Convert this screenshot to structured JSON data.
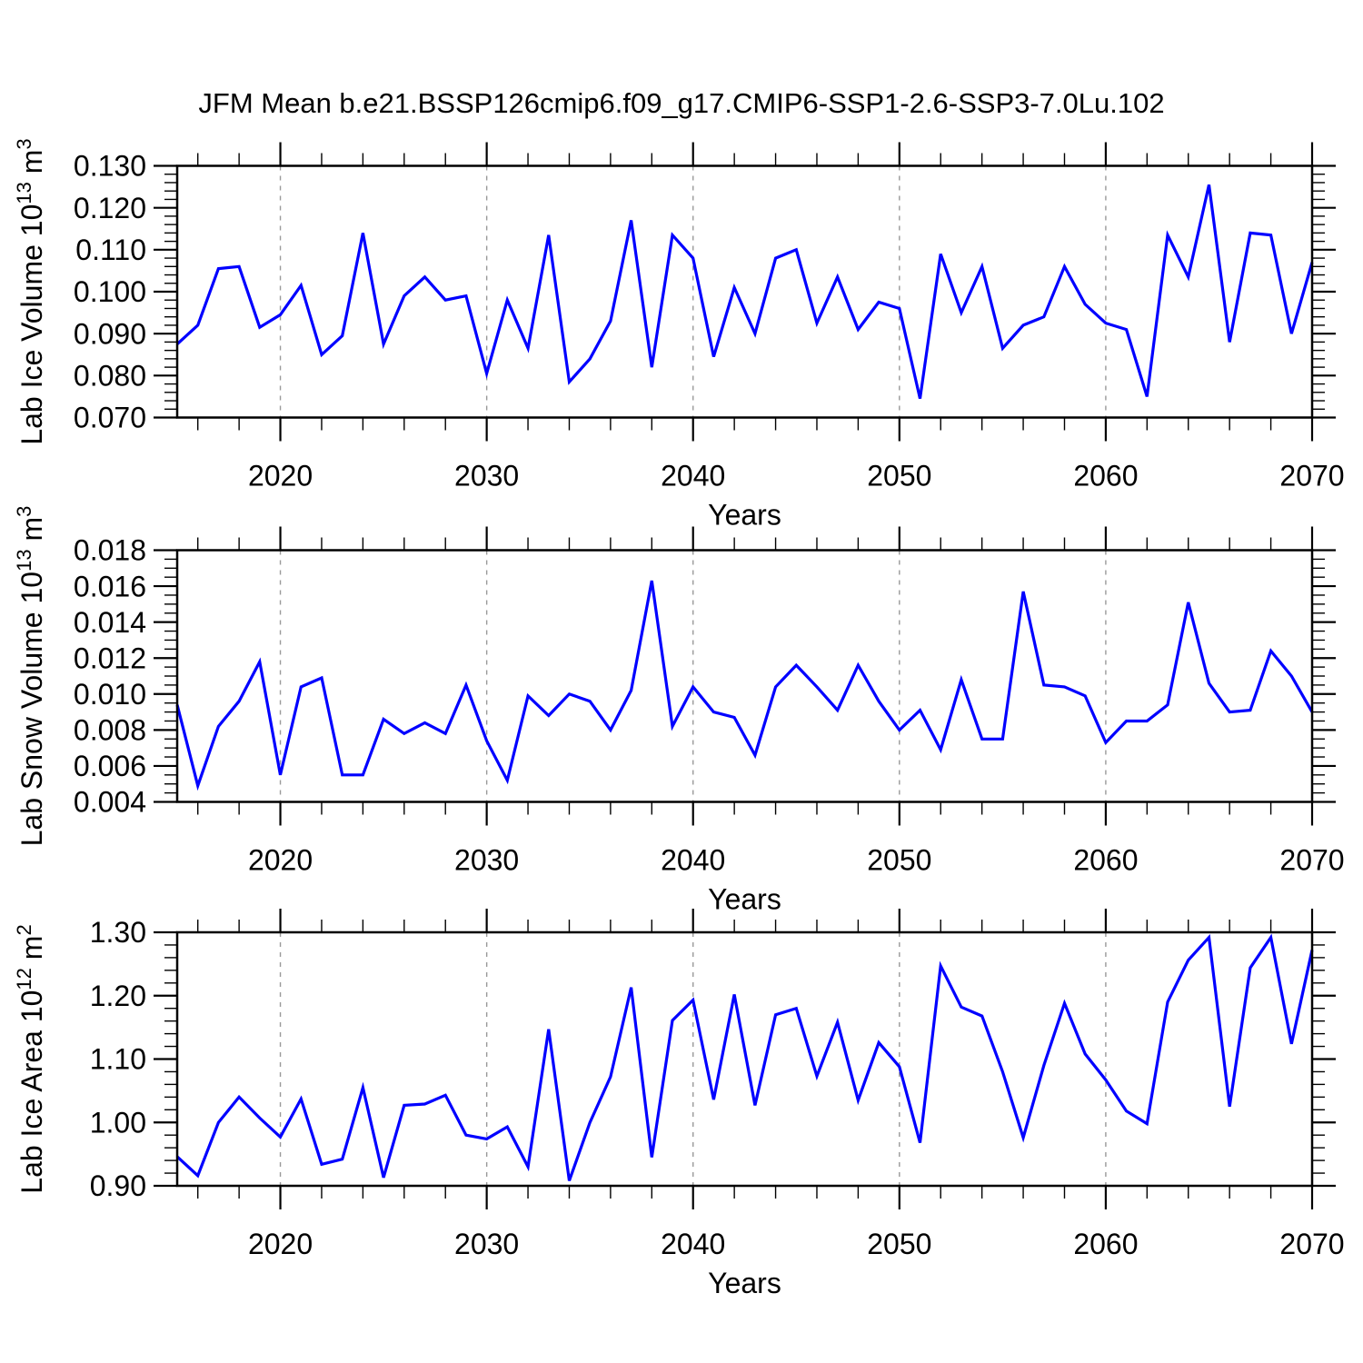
{
  "chart_data": {
    "type": "line",
    "title": "JFM Mean b.e21.BSSP126cmip6.f09_g17.CMIP6-SSP1-2.6-SSP3-7.0Lu.102",
    "xlabel": "Years",
    "legend": "none",
    "grid": "vertical-dashed",
    "line_color": "#0000ff",
    "grid_color": "#999999",
    "axis_color": "#000000",
    "x": [
      2015,
      2016,
      2017,
      2018,
      2019,
      2020,
      2021,
      2022,
      2023,
      2024,
      2025,
      2026,
      2027,
      2028,
      2029,
      2030,
      2031,
      2032,
      2033,
      2034,
      2035,
      2036,
      2037,
      2038,
      2039,
      2040,
      2041,
      2042,
      2043,
      2044,
      2045,
      2046,
      2047,
      2048,
      2049,
      2050,
      2051,
      2052,
      2053,
      2054,
      2055,
      2056,
      2057,
      2058,
      2059,
      2060,
      2061,
      2062,
      2063,
      2064,
      2065,
      2066,
      2067,
      2068,
      2069,
      2070
    ],
    "xlim": [
      2015,
      2070
    ],
    "xticks": [
      2020,
      2030,
      2040,
      2050,
      2060,
      2070
    ],
    "xtick_labels": [
      "2020",
      "2030",
      "2040",
      "2050",
      "2060",
      "2070"
    ],
    "x_minor_tick_step": 2,
    "vertical_gridlines": [
      2020,
      2030,
      2040,
      2050,
      2060
    ],
    "panels": [
      {
        "name": "lab-ice-volume",
        "ylabel": "Lab Ice Volume 10^13 m^3",
        "ylim": [
          0.07,
          0.13
        ],
        "yticks": [
          0.07,
          0.08,
          0.09,
          0.1,
          0.11,
          0.12,
          0.13
        ],
        "ytick_labels": [
          "0.070",
          "0.080",
          "0.090",
          "0.100",
          "0.110",
          "0.120",
          "0.130"
        ],
        "y_minor_tick_step": 0.002,
        "values": [
          0.0875,
          0.092,
          0.1055,
          0.106,
          0.0915,
          0.0945,
          0.1015,
          0.085,
          0.0895,
          0.114,
          0.0875,
          0.099,
          0.1035,
          0.098,
          0.099,
          0.0805,
          0.098,
          0.0865,
          0.1135,
          0.0785,
          0.084,
          0.093,
          0.117,
          0.082,
          0.1135,
          0.108,
          0.0845,
          0.101,
          0.09,
          0.108,
          0.11,
          0.0925,
          0.1035,
          0.091,
          0.0975,
          0.096,
          0.0745,
          0.109,
          0.095,
          0.106,
          0.0865,
          0.092,
          0.094,
          0.106,
          0.097,
          0.0925,
          0.091,
          0.075,
          0.1135,
          0.1035,
          0.1255,
          0.088,
          0.114,
          0.1135,
          0.09,
          0.107
        ]
      },
      {
        "name": "lab-snow-volume",
        "ylabel": "Lab Snow Volume 10^13 m^3",
        "ylim": [
          0.004,
          0.018
        ],
        "yticks": [
          0.004,
          0.006,
          0.008,
          0.01,
          0.012,
          0.014,
          0.016,
          0.018
        ],
        "ytick_labels": [
          "0.004",
          "0.006",
          "0.008",
          "0.010",
          "0.012",
          "0.014",
          "0.016",
          "0.018"
        ],
        "y_minor_tick_step": 0.0005,
        "values": [
          0.0094,
          0.0049,
          0.0082,
          0.0096,
          0.0118,
          0.0055,
          0.0104,
          0.0109,
          0.0055,
          0.0055,
          0.0086,
          0.0078,
          0.0084,
          0.0078,
          0.0105,
          0.0074,
          0.0052,
          0.0099,
          0.0088,
          0.01,
          0.0096,
          0.008,
          0.0102,
          0.0163,
          0.0082,
          0.0104,
          0.009,
          0.0087,
          0.0066,
          0.0104,
          0.0116,
          0.0104,
          0.0091,
          0.0116,
          0.0096,
          0.008,
          0.0091,
          0.0069,
          0.0108,
          0.0075,
          0.0075,
          0.0157,
          0.0105,
          0.0104,
          0.0099,
          0.0073,
          0.0085,
          0.0085,
          0.0094,
          0.0151,
          0.0106,
          0.009,
          0.0091,
          0.0124,
          0.011,
          0.009
        ]
      },
      {
        "name": "lab-ice-area",
        "ylabel": "Lab Ice Area 10^12 m^2",
        "ylim": [
          0.9,
          1.3
        ],
        "yticks": [
          0.9,
          1.0,
          1.1,
          1.2,
          1.3
        ],
        "ytick_labels": [
          "0.90",
          "1.00",
          "1.10",
          "1.20",
          "1.30"
        ],
        "y_minor_tick_step": 0.02,
        "values": [
          0.946,
          0.916,
          1.0,
          1.04,
          1.007,
          0.977,
          1.037,
          0.934,
          0.942,
          1.055,
          0.913,
          1.027,
          1.029,
          1.043,
          0.98,
          0.974,
          0.993,
          0.93,
          1.147,
          0.908,
          1.0,
          1.072,
          1.213,
          0.945,
          1.161,
          1.193,
          1.036,
          1.202,
          1.027,
          1.17,
          1.18,
          1.073,
          1.158,
          1.035,
          1.126,
          1.088,
          0.968,
          1.247,
          1.182,
          1.168,
          1.08,
          0.976,
          1.09,
          1.188,
          1.108,
          1.067,
          1.018,
          0.998,
          1.19,
          1.256,
          1.292,
          1.025,
          1.244,
          1.292,
          1.124,
          1.272
        ]
      }
    ]
  }
}
